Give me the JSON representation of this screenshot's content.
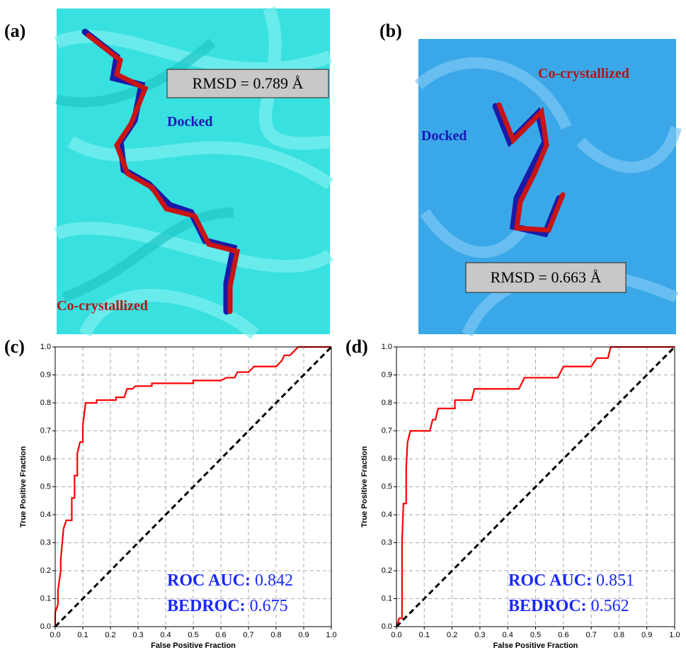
{
  "images": [
    {
      "panel_label": "(a)",
      "rmsd": "RMSD = 0.789 Å",
      "docked": "Docked",
      "cocrystal": "Co-crystallized"
    },
    {
      "panel_label": "(b)",
      "rmsd": "RMSD = 0.663 Å",
      "docked": "Docked",
      "cocrystal": "Co-crystallized"
    }
  ],
  "chart_data": [
    {
      "type": "line",
      "panel_label": "(c)",
      "x_label": "False Positive Fraction",
      "y_label": "True Positive Fraction",
      "xlim": [
        0,
        1
      ],
      "ylim": [
        0,
        1
      ],
      "grid": true,
      "xticks": [
        {
          "value": 0,
          "label": "0.0"
        },
        0.1,
        0.2,
        0.3,
        0.4,
        0.5,
        0.6,
        0.7,
        0.8,
        0.9,
        {
          "value": 1,
          "label": "1.0"
        }
      ],
      "yticks": [
        {
          "value": 0,
          "label": "0.0"
        },
        0.1,
        0.2,
        0.3,
        0.4,
        0.5,
        0.6,
        0.7,
        0.8,
        0.9,
        {
          "value": 1,
          "label": "1.0"
        }
      ],
      "series": [
        {
          "color": "#ff0000",
          "x": [
            0,
            0,
            0.01,
            0.01,
            0.02,
            0.02,
            0.03,
            0.04,
            0.06,
            0.06,
            0.07,
            0.07,
            0.08,
            0.08,
            0.09,
            0.1,
            0.1,
            0.11,
            0.15,
            0.15,
            0.22,
            0.22,
            0.25,
            0.26,
            0.28,
            0.29,
            0.35,
            0.35,
            0.5,
            0.5,
            0.6,
            0.62,
            0.65,
            0.66,
            0.7,
            0.72,
            0.8,
            0.82,
            0.83,
            0.85,
            0.87,
            0.88,
            1
          ],
          "values": [
            0,
            0.05,
            0.08,
            0.13,
            0.2,
            0.24,
            0.35,
            0.38,
            0.38,
            0.46,
            0.46,
            0.54,
            0.54,
            0.62,
            0.66,
            0.66,
            0.72,
            0.8,
            0.8,
            0.81,
            0.81,
            0.82,
            0.82,
            0.85,
            0.85,
            0.86,
            0.86,
            0.87,
            0.87,
            0.88,
            0.88,
            0.89,
            0.89,
            0.91,
            0.91,
            0.93,
            0.93,
            0.95,
            0.97,
            0.97,
            0.99,
            1,
            1
          ]
        },
        {
          "color": "#000000",
          "dashed": true,
          "x": [
            0,
            1
          ],
          "values": [
            0,
            1
          ]
        }
      ],
      "annotations": [
        {
          "label": "ROC AUC:",
          "value": 0.842
        },
        {
          "label": "BEDROC:",
          "value": 0.675
        }
      ]
    },
    {
      "type": "line",
      "panel_label": "(d)",
      "x_label": "False Positive Fraction",
      "y_label": "True Positive Fraction",
      "xlim": [
        0,
        1
      ],
      "ylim": [
        0,
        1
      ],
      "grid": true,
      "xticks": [
        {
          "value": 0,
          "label": "0.0"
        },
        0.1,
        0.2,
        0.3,
        0.4,
        0.5,
        0.6,
        0.7,
        0.8,
        0.9,
        {
          "value": 1,
          "label": "1.0"
        }
      ],
      "yticks": [
        {
          "value": 0,
          "label": "0.0"
        },
        0.1,
        0.2,
        0.3,
        0.4,
        0.5,
        0.6,
        0.7,
        0.8,
        0.9,
        {
          "value": 1,
          "label": "1.0"
        }
      ],
      "series": [
        {
          "color": "#ff0000",
          "x": [
            0,
            0.01,
            0.02,
            0.02,
            0.025,
            0.035,
            0.035,
            0.04,
            0.05,
            0.12,
            0.13,
            0.14,
            0.15,
            0.19,
            0.21,
            0.21,
            0.27,
            0.28,
            0.44,
            0.46,
            0.58,
            0.6,
            0.7,
            0.72,
            0.76,
            0.77,
            1
          ],
          "values": [
            0,
            0.03,
            0.03,
            0.3,
            0.44,
            0.44,
            0.57,
            0.66,
            0.7,
            0.7,
            0.74,
            0.74,
            0.78,
            0.78,
            0.78,
            0.81,
            0.81,
            0.85,
            0.85,
            0.89,
            0.89,
            0.93,
            0.93,
            0.96,
            0.96,
            1,
            1
          ]
        },
        {
          "color": "#000000",
          "dashed": true,
          "x": [
            0,
            1
          ],
          "values": [
            0,
            1
          ]
        }
      ],
      "annotations": [
        {
          "label": "ROC AUC:",
          "value": 0.851
        },
        {
          "label": "BEDROC:",
          "value": 0.562
        }
      ]
    }
  ]
}
